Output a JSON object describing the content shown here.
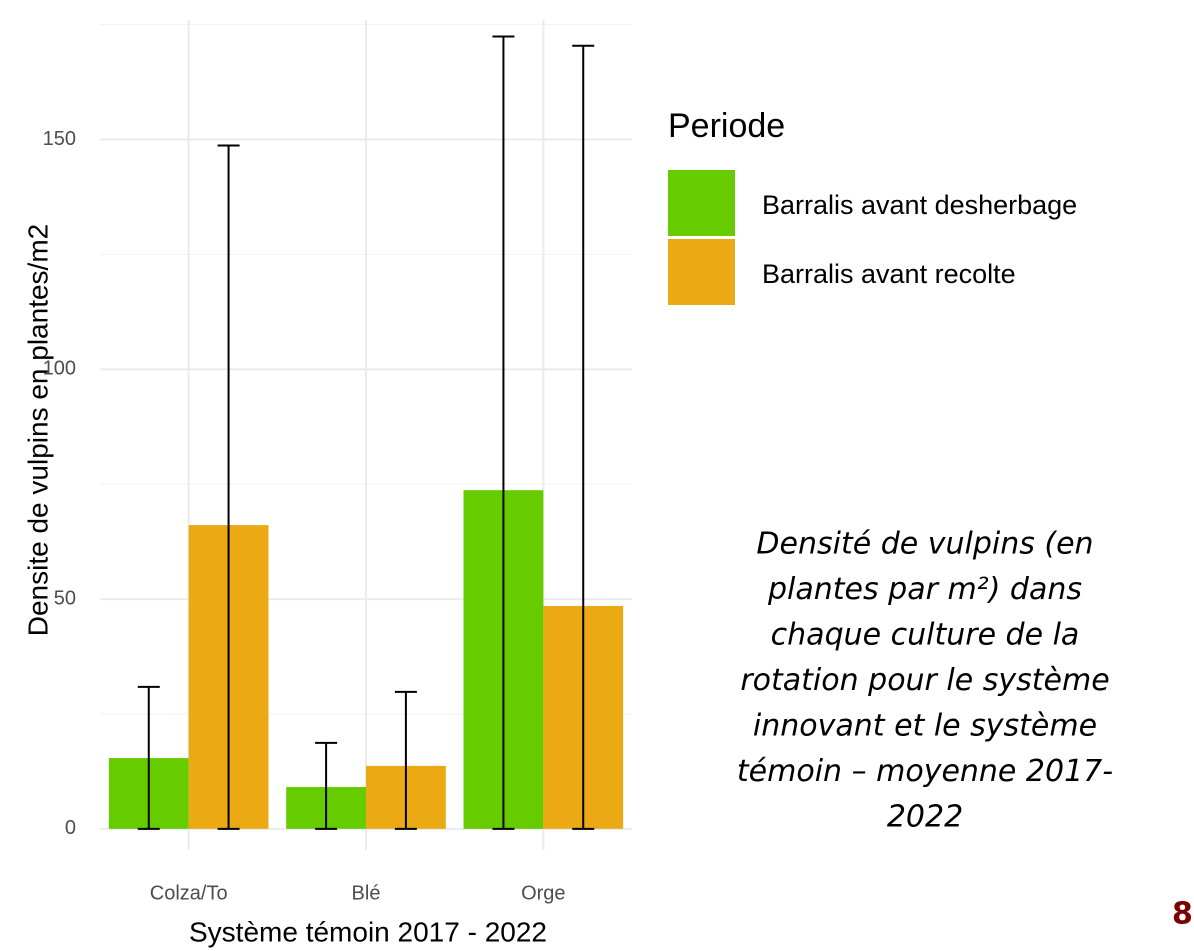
{
  "chart_data": {
    "type": "bar",
    "xlabel": "Système témoin 2017 - 2022",
    "ylabel": "Densite de vulpins en plantes/m2",
    "categories": [
      "Colza/To",
      "Blé",
      "Orge"
    ],
    "series": [
      {
        "name": "Barralis avant desherbage",
        "color": "#66cc00",
        "values": [
          15.4,
          9.1,
          73.7
        ],
        "error_lower": [
          0,
          0,
          0
        ],
        "error_upper": [
          30.9,
          18.7,
          172.4
        ]
      },
      {
        "name": "Barralis avant recolte",
        "color": "#ebaa14",
        "values": [
          66.1,
          13.7,
          48.5
        ],
        "error_lower": [
          0,
          0,
          0
        ],
        "error_upper": [
          148.7,
          29.8,
          170.4
        ]
      }
    ],
    "legend_title": "Periode",
    "legend_position": "right",
    "ylim": [
      -4.6,
      176
    ],
    "yticks": [
      0,
      50,
      100,
      150
    ],
    "minor_yticks": [
      25,
      75,
      125,
      175
    ],
    "grid": true,
    "caption_lines": [
      "Densité de vulpins (en",
      "plantes par m²) dans",
      "chaque culture de la",
      "rotation pour le système",
      "innovant et le système",
      "témoin – moyenne 2017-",
      "2022"
    ]
  },
  "page_number": "8"
}
